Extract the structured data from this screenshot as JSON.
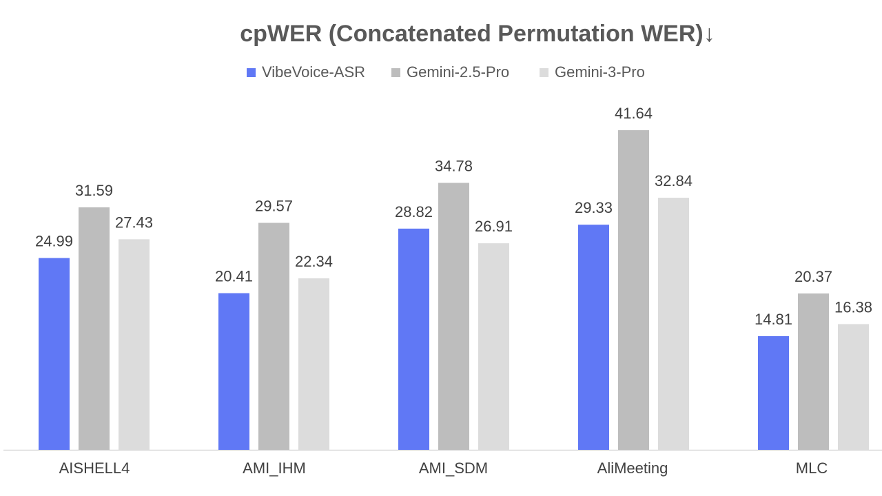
{
  "chart_data": {
    "type": "bar",
    "title": "cpWER (Concatenated Permutation WER)↓",
    "xlabel": "",
    "ylabel": "",
    "ylim": [
      0,
      45
    ],
    "grid": false,
    "legend_position": "top",
    "categories": [
      "AISHELL4",
      "AMI_IHM",
      "AMI_SDM",
      "AliMeeting",
      "MLC"
    ],
    "series": [
      {
        "name": "VibeVoice-ASR",
        "color": "#6078f5",
        "values": [
          24.99,
          20.41,
          28.82,
          29.33,
          14.81
        ],
        "labels": [
          "24.99",
          "20.41",
          "28.82",
          "29.33",
          "14.81"
        ]
      },
      {
        "name": "Gemini-2.5-Pro",
        "color": "#bdbdbd",
        "values": [
          31.59,
          29.57,
          34.78,
          41.64,
          20.37
        ],
        "labels": [
          "31.59",
          "29.57",
          "34.78",
          "41.64",
          "20.37"
        ]
      },
      {
        "name": "Gemini-3-Pro",
        "color": "#dcdcdc",
        "values": [
          27.43,
          22.34,
          26.91,
          32.84,
          16.38
        ],
        "labels": [
          "27.43",
          "22.34",
          "26.91",
          "32.84",
          "16.38"
        ]
      }
    ]
  }
}
